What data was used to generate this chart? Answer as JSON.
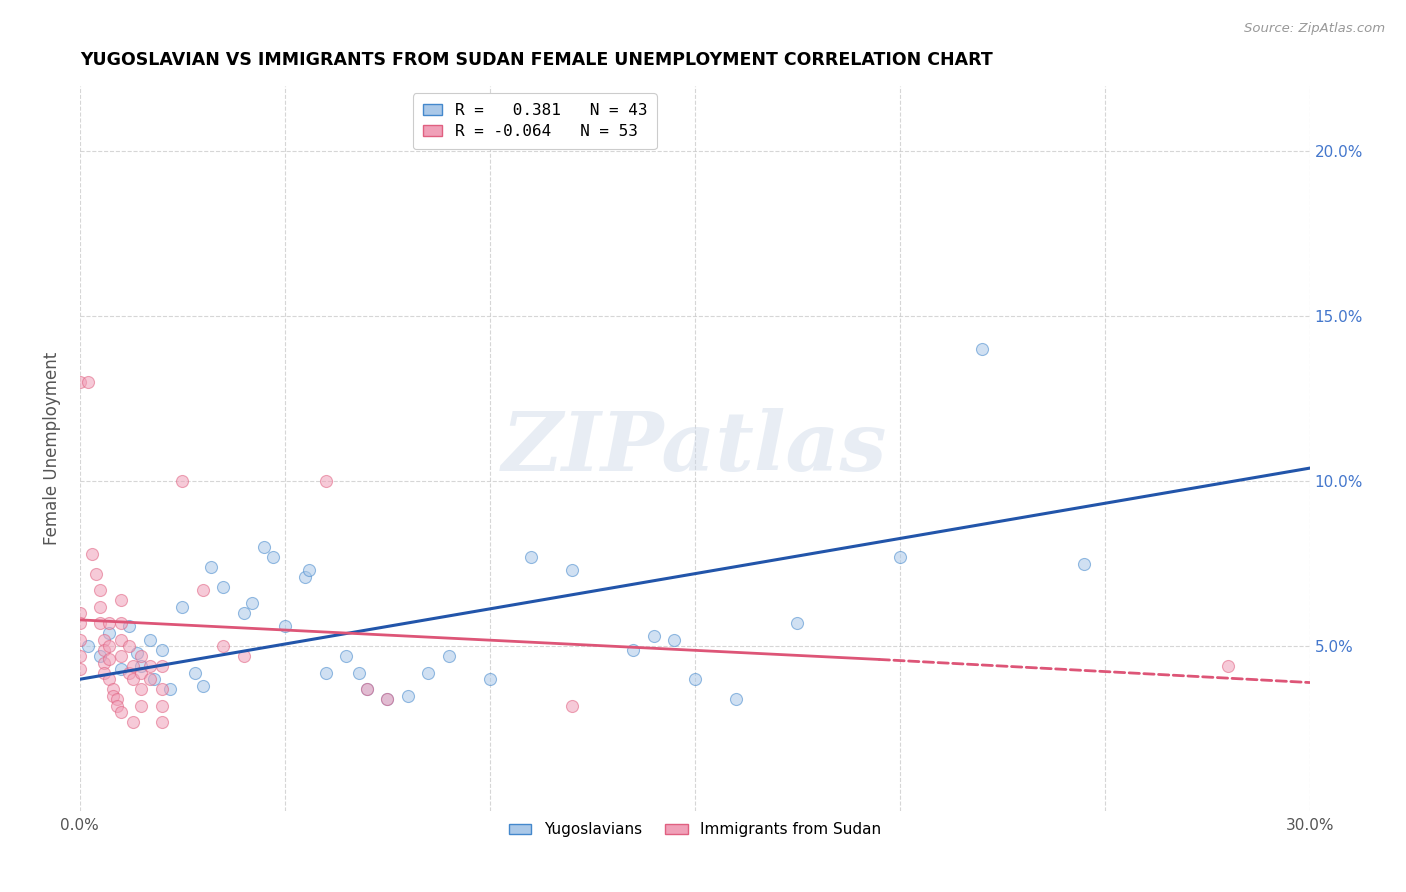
{
  "title": "YUGOSLAVIAN VS IMMIGRANTS FROM SUDAN FEMALE UNEMPLOYMENT CORRELATION CHART",
  "source": "Source: ZipAtlas.com",
  "ylabel": "Female Unemployment",
  "right_yticks": [
    "20.0%",
    "15.0%",
    "10.0%",
    "5.0%"
  ],
  "right_ytick_vals": [
    0.2,
    0.15,
    0.1,
    0.05
  ],
  "xlim": [
    0.0,
    0.3
  ],
  "ylim": [
    0.0,
    0.22
  ],
  "legend_entries": [
    {
      "label": "R =   0.381   N = 43",
      "color": "#a8c4e0"
    },
    {
      "label": "R = -0.064   N = 53",
      "color": "#f4a0b0"
    }
  ],
  "legend_labels_bottom": [
    "Yugoslavians",
    "Immigrants from Sudan"
  ],
  "blue_line": {
    "x0": 0.0,
    "y0": 0.04,
    "x1": 0.3,
    "y1": 0.104
  },
  "pink_line_solid": {
    "x0": 0.0,
    "y0": 0.058,
    "x1": 0.195,
    "y1": 0.046
  },
  "pink_line_dashed": {
    "x0": 0.195,
    "y0": 0.046,
    "x1": 0.3,
    "y1": 0.039
  },
  "blue_scatter": [
    [
      0.002,
      0.05
    ],
    [
      0.005,
      0.047
    ],
    [
      0.007,
      0.054
    ],
    [
      0.01,
      0.043
    ],
    [
      0.012,
      0.056
    ],
    [
      0.014,
      0.048
    ],
    [
      0.015,
      0.044
    ],
    [
      0.017,
      0.052
    ],
    [
      0.018,
      0.04
    ],
    [
      0.02,
      0.049
    ],
    [
      0.022,
      0.037
    ],
    [
      0.025,
      0.062
    ],
    [
      0.028,
      0.042
    ],
    [
      0.03,
      0.038
    ],
    [
      0.032,
      0.074
    ],
    [
      0.035,
      0.068
    ],
    [
      0.04,
      0.06
    ],
    [
      0.042,
      0.063
    ],
    [
      0.045,
      0.08
    ],
    [
      0.047,
      0.077
    ],
    [
      0.05,
      0.056
    ],
    [
      0.055,
      0.071
    ],
    [
      0.056,
      0.073
    ],
    [
      0.06,
      0.042
    ],
    [
      0.065,
      0.047
    ],
    [
      0.068,
      0.042
    ],
    [
      0.07,
      0.037
    ],
    [
      0.075,
      0.034
    ],
    [
      0.08,
      0.035
    ],
    [
      0.085,
      0.042
    ],
    [
      0.09,
      0.047
    ],
    [
      0.1,
      0.04
    ],
    [
      0.11,
      0.077
    ],
    [
      0.12,
      0.073
    ],
    [
      0.135,
      0.049
    ],
    [
      0.14,
      0.053
    ],
    [
      0.145,
      0.052
    ],
    [
      0.15,
      0.04
    ],
    [
      0.16,
      0.034
    ],
    [
      0.175,
      0.057
    ],
    [
      0.2,
      0.077
    ],
    [
      0.22,
      0.14
    ],
    [
      0.245,
      0.075
    ]
  ],
  "pink_scatter": [
    [
      0.0,
      0.13
    ],
    [
      0.0,
      0.06
    ],
    [
      0.0,
      0.057
    ],
    [
      0.0,
      0.052
    ],
    [
      0.0,
      0.047
    ],
    [
      0.0,
      0.043
    ],
    [
      0.002,
      0.13
    ],
    [
      0.003,
      0.078
    ],
    [
      0.004,
      0.072
    ],
    [
      0.005,
      0.067
    ],
    [
      0.005,
      0.062
    ],
    [
      0.005,
      0.057
    ],
    [
      0.006,
      0.052
    ],
    [
      0.006,
      0.049
    ],
    [
      0.006,
      0.045
    ],
    [
      0.006,
      0.042
    ],
    [
      0.007,
      0.057
    ],
    [
      0.007,
      0.05
    ],
    [
      0.007,
      0.046
    ],
    [
      0.007,
      0.04
    ],
    [
      0.008,
      0.037
    ],
    [
      0.008,
      0.035
    ],
    [
      0.009,
      0.034
    ],
    [
      0.009,
      0.032
    ],
    [
      0.01,
      0.064
    ],
    [
      0.01,
      0.057
    ],
    [
      0.01,
      0.052
    ],
    [
      0.01,
      0.047
    ],
    [
      0.01,
      0.03
    ],
    [
      0.012,
      0.05
    ],
    [
      0.012,
      0.042
    ],
    [
      0.013,
      0.044
    ],
    [
      0.013,
      0.04
    ],
    [
      0.013,
      0.027
    ],
    [
      0.015,
      0.047
    ],
    [
      0.015,
      0.042
    ],
    [
      0.015,
      0.037
    ],
    [
      0.015,
      0.032
    ],
    [
      0.017,
      0.044
    ],
    [
      0.017,
      0.04
    ],
    [
      0.02,
      0.044
    ],
    [
      0.02,
      0.037
    ],
    [
      0.02,
      0.032
    ],
    [
      0.02,
      0.027
    ],
    [
      0.025,
      0.1
    ],
    [
      0.03,
      0.067
    ],
    [
      0.035,
      0.05
    ],
    [
      0.04,
      0.047
    ],
    [
      0.06,
      0.1
    ],
    [
      0.07,
      0.037
    ],
    [
      0.075,
      0.034
    ],
    [
      0.12,
      0.032
    ],
    [
      0.28,
      0.044
    ]
  ],
  "watermark": "ZIPatlas",
  "scatter_size": 75,
  "scatter_alpha": 0.55,
  "blue_color": "#aac8e8",
  "pink_color": "#f0a0b8",
  "blue_edge_color": "#4488cc",
  "pink_edge_color": "#e06080",
  "blue_line_color": "#2255aa",
  "pink_line_color": "#dd5577",
  "background_color": "#ffffff",
  "grid_color": "#cccccc"
}
